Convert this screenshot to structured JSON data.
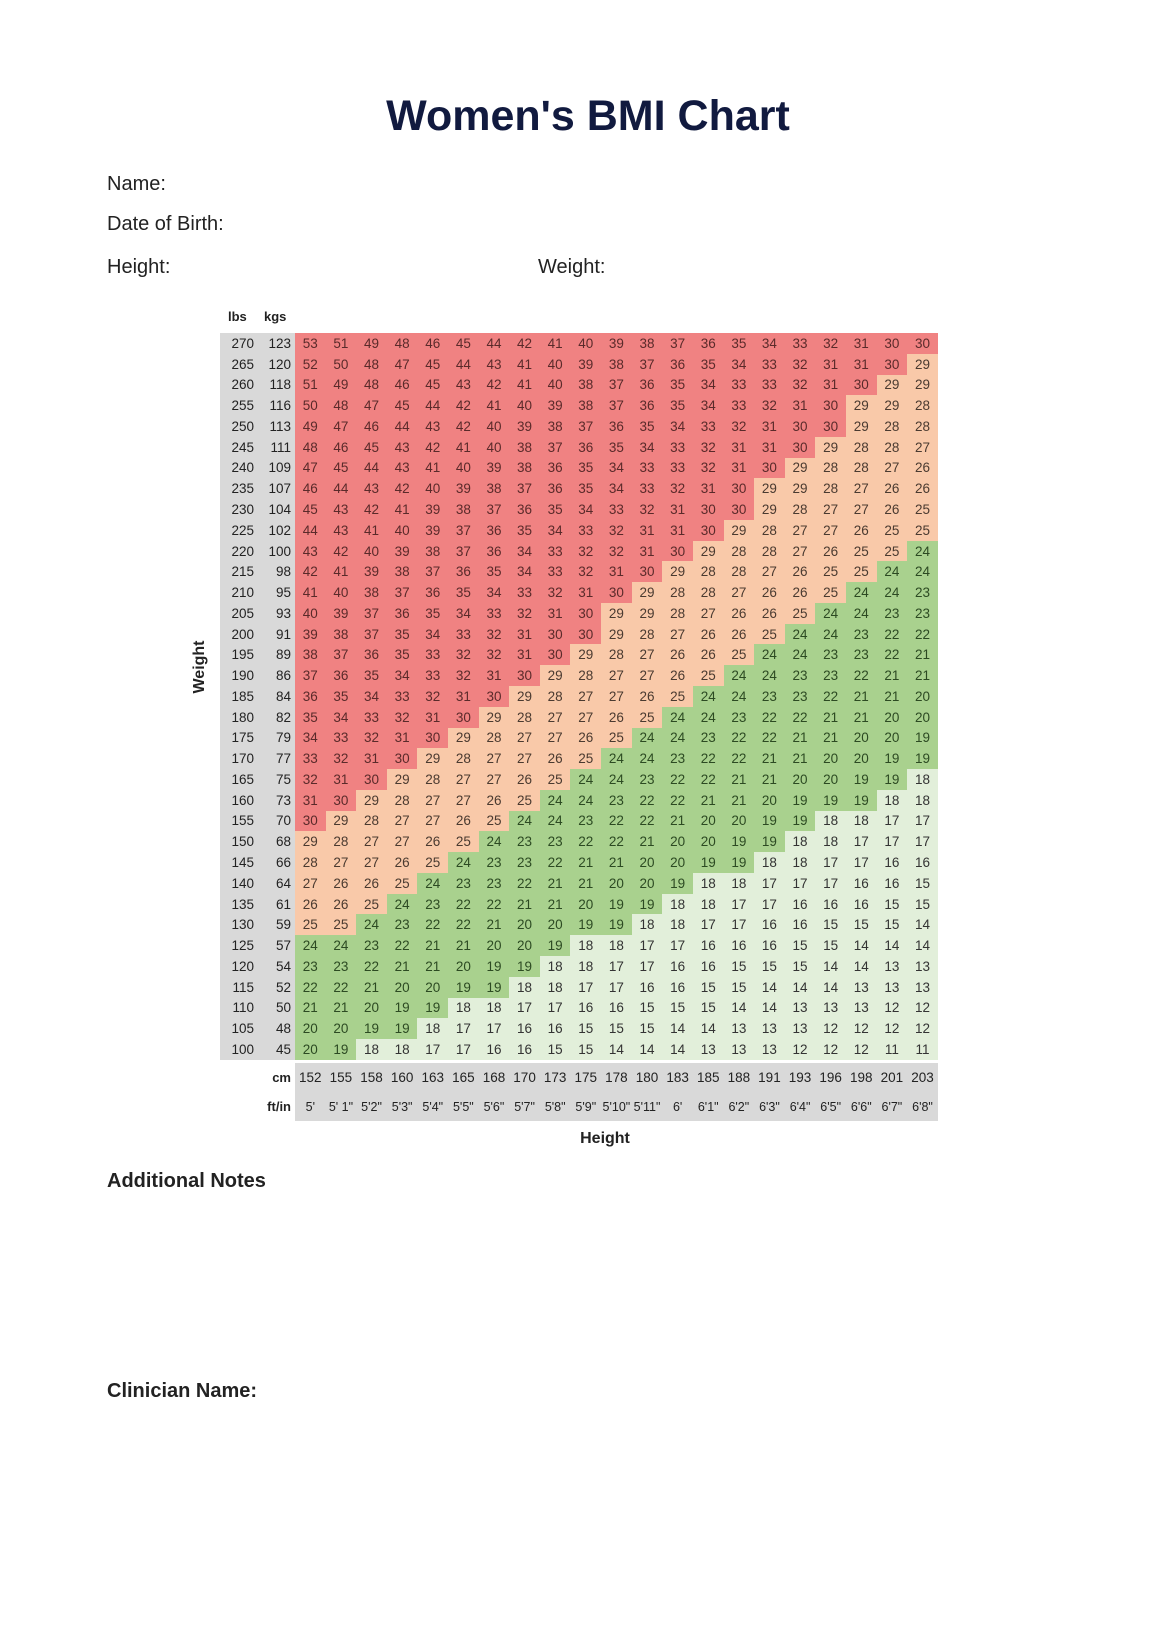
{
  "title": "Women's BMI Chart",
  "fields": {
    "name": "Name:",
    "dob": "Date of Birth:",
    "height": "Height:",
    "weight": "Weight:"
  },
  "table": {
    "lbs_header": "lbs",
    "kgs_header": "kgs",
    "cm_label": "cm",
    "ftin_label": "ft/in",
    "y_axis_label": "Weight",
    "x_axis_label": "Height",
    "colors": {
      "obese": "#f08282",
      "overweight": "#f9c9a9",
      "healthy": "#a9d18e",
      "underweight": "#e2efda",
      "header": "#d9d9d9"
    },
    "cm": [
      "152",
      "155",
      "158",
      "160",
      "163",
      "165",
      "168",
      "170",
      "173",
      "175",
      "178",
      "180",
      "183",
      "185",
      "188",
      "191",
      "193",
      "196",
      "198",
      "201",
      "203"
    ],
    "ftin": [
      "5'",
      "5' 1\"",
      "5'2\"",
      "5'3\"",
      "5'4\"",
      "5'5\"",
      "5'6\"",
      "5'7\"",
      "5'8\"",
      "5'9\"",
      "5'10\"",
      "5'11\"",
      "6'",
      "6'1\"",
      "6'2\"",
      "6'3\"",
      "6'4\"",
      "6'5\"",
      "6'6\"",
      "6'7\"",
      "6'8\""
    ],
    "rows": [
      {
        "lbs": "270",
        "kgs": "123",
        "bmi": [
          53,
          51,
          49,
          48,
          46,
          45,
          44,
          42,
          41,
          40,
          39,
          38,
          37,
          36,
          35,
          34,
          33,
          32,
          31,
          30,
          30
        ]
      },
      {
        "lbs": "265",
        "kgs": "120",
        "bmi": [
          52,
          50,
          48,
          47,
          45,
          44,
          43,
          41,
          40,
          39,
          38,
          37,
          36,
          35,
          34,
          33,
          32,
          31,
          31,
          30,
          29
        ]
      },
      {
        "lbs": "260",
        "kgs": "118",
        "bmi": [
          51,
          49,
          48,
          46,
          45,
          43,
          42,
          41,
          40,
          38,
          37,
          36,
          35,
          34,
          33,
          33,
          32,
          31,
          30,
          29,
          29
        ]
      },
      {
        "lbs": "255",
        "kgs": "116",
        "bmi": [
          50,
          48,
          47,
          45,
          44,
          42,
          41,
          40,
          39,
          38,
          37,
          36,
          35,
          34,
          33,
          32,
          31,
          30,
          29,
          29,
          28
        ]
      },
      {
        "lbs": "250",
        "kgs": "113",
        "bmi": [
          49,
          47,
          46,
          44,
          43,
          42,
          40,
          39,
          38,
          37,
          36,
          35,
          34,
          33,
          32,
          31,
          30,
          30,
          29,
          28,
          28
        ]
      },
      {
        "lbs": "245",
        "kgs": "111",
        "bmi": [
          48,
          46,
          45,
          43,
          42,
          41,
          40,
          38,
          37,
          36,
          35,
          34,
          33,
          32,
          31,
          31,
          30,
          29,
          28,
          28,
          27
        ]
      },
      {
        "lbs": "240",
        "kgs": "109",
        "bmi": [
          47,
          45,
          44,
          43,
          41,
          40,
          39,
          38,
          36,
          35,
          34,
          33,
          33,
          32,
          31,
          30,
          29,
          28,
          28,
          27,
          26
        ]
      },
      {
        "lbs": "235",
        "kgs": "107",
        "bmi": [
          46,
          44,
          43,
          42,
          40,
          39,
          38,
          37,
          36,
          35,
          34,
          33,
          32,
          31,
          30,
          29,
          29,
          28,
          27,
          26,
          26
        ]
      },
      {
        "lbs": "230",
        "kgs": "104",
        "bmi": [
          45,
          43,
          42,
          41,
          39,
          38,
          37,
          36,
          35,
          34,
          33,
          32,
          31,
          30,
          30,
          29,
          28,
          27,
          27,
          26,
          25
        ]
      },
      {
        "lbs": "225",
        "kgs": "102",
        "bmi": [
          44,
          43,
          41,
          40,
          39,
          37,
          36,
          35,
          34,
          33,
          32,
          31,
          31,
          30,
          29,
          28,
          27,
          27,
          26,
          25,
          25
        ]
      },
      {
        "lbs": "220",
        "kgs": "100",
        "bmi": [
          43,
          42,
          40,
          39,
          38,
          37,
          36,
          34,
          33,
          32,
          32,
          31,
          30,
          29,
          28,
          28,
          27,
          26,
          25,
          25,
          24
        ]
      },
      {
        "lbs": "215",
        "kgs": "98",
        "bmi": [
          42,
          41,
          39,
          38,
          37,
          36,
          35,
          34,
          33,
          32,
          31,
          30,
          29,
          28,
          28,
          27,
          26,
          25,
          25,
          24,
          24
        ]
      },
      {
        "lbs": "210",
        "kgs": "95",
        "bmi": [
          41,
          40,
          38,
          37,
          36,
          35,
          34,
          33,
          32,
          31,
          30,
          29,
          28,
          28,
          27,
          26,
          26,
          25,
          24,
          24,
          23
        ]
      },
      {
        "lbs": "205",
        "kgs": "93",
        "bmi": [
          40,
          39,
          37,
          36,
          35,
          34,
          33,
          32,
          31,
          30,
          29,
          29,
          28,
          27,
          26,
          26,
          25,
          24,
          24,
          23,
          23
        ]
      },
      {
        "lbs": "200",
        "kgs": "91",
        "bmi": [
          39,
          38,
          37,
          35,
          34,
          33,
          32,
          31,
          30,
          30,
          29,
          28,
          27,
          26,
          26,
          25,
          24,
          24,
          23,
          22,
          22
        ]
      },
      {
        "lbs": "195",
        "kgs": "89",
        "bmi": [
          38,
          37,
          36,
          35,
          33,
          32,
          32,
          31,
          30,
          29,
          28,
          27,
          26,
          26,
          25,
          24,
          24,
          23,
          23,
          22,
          21
        ]
      },
      {
        "lbs": "190",
        "kgs": "86",
        "bmi": [
          37,
          36,
          35,
          34,
          33,
          32,
          31,
          30,
          29,
          28,
          27,
          27,
          26,
          25,
          24,
          24,
          23,
          23,
          22,
          21,
          21
        ]
      },
      {
        "lbs": "185",
        "kgs": "84",
        "bmi": [
          36,
          35,
          34,
          33,
          32,
          31,
          30,
          29,
          28,
          27,
          27,
          26,
          25,
          24,
          24,
          23,
          23,
          22,
          21,
          21,
          20
        ]
      },
      {
        "lbs": "180",
        "kgs": "82",
        "bmi": [
          35,
          34,
          33,
          32,
          31,
          30,
          29,
          28,
          27,
          27,
          26,
          25,
          24,
          24,
          23,
          22,
          22,
          21,
          21,
          20,
          20
        ]
      },
      {
        "lbs": "175",
        "kgs": "79",
        "bmi": [
          34,
          33,
          32,
          31,
          30,
          29,
          28,
          27,
          27,
          26,
          25,
          24,
          24,
          23,
          22,
          22,
          21,
          21,
          20,
          20,
          19
        ]
      },
      {
        "lbs": "170",
        "kgs": "77",
        "bmi": [
          33,
          32,
          31,
          30,
          29,
          28,
          27,
          27,
          26,
          25,
          24,
          24,
          23,
          22,
          22,
          21,
          21,
          20,
          20,
          19,
          19
        ]
      },
      {
        "lbs": "165",
        "kgs": "75",
        "bmi": [
          32,
          31,
          30,
          29,
          28,
          27,
          27,
          26,
          25,
          24,
          24,
          23,
          22,
          22,
          21,
          21,
          20,
          20,
          19,
          19,
          18
        ]
      },
      {
        "lbs": "160",
        "kgs": "73",
        "bmi": [
          31,
          30,
          29,
          28,
          27,
          27,
          26,
          25,
          24,
          24,
          23,
          22,
          22,
          21,
          21,
          20,
          19,
          19,
          19,
          18,
          18
        ]
      },
      {
        "lbs": "155",
        "kgs": "70",
        "bmi": [
          30,
          29,
          28,
          27,
          27,
          26,
          25,
          24,
          24,
          23,
          22,
          22,
          21,
          20,
          20,
          19,
          19,
          18,
          18,
          17,
          17
        ]
      },
      {
        "lbs": "150",
        "kgs": "68",
        "bmi": [
          29,
          28,
          27,
          27,
          26,
          25,
          24,
          23,
          23,
          22,
          22,
          21,
          20,
          20,
          19,
          19,
          18,
          18,
          17,
          17,
          17
        ]
      },
      {
        "lbs": "145",
        "kgs": "66",
        "bmi": [
          28,
          27,
          27,
          26,
          25,
          24,
          23,
          23,
          22,
          21,
          21,
          20,
          20,
          19,
          19,
          18,
          18,
          17,
          17,
          16,
          16
        ]
      },
      {
        "lbs": "140",
        "kgs": "64",
        "bmi": [
          27,
          26,
          26,
          25,
          24,
          23,
          23,
          22,
          21,
          21,
          20,
          20,
          19,
          18,
          18,
          17,
          17,
          17,
          16,
          16,
          15
        ]
      },
      {
        "lbs": "135",
        "kgs": "61",
        "bmi": [
          26,
          26,
          25,
          24,
          23,
          22,
          22,
          21,
          21,
          20,
          19,
          19,
          18,
          18,
          17,
          17,
          16,
          16,
          16,
          15,
          15
        ]
      },
      {
        "lbs": "130",
        "kgs": "59",
        "bmi": [
          25,
          25,
          24,
          23,
          22,
          22,
          21,
          20,
          20,
          19,
          19,
          18,
          18,
          17,
          17,
          16,
          16,
          15,
          15,
          15,
          14
        ]
      },
      {
        "lbs": "125",
        "kgs": "57",
        "bmi": [
          24,
          24,
          23,
          22,
          21,
          21,
          20,
          20,
          19,
          18,
          18,
          17,
          17,
          16,
          16,
          16,
          15,
          15,
          14,
          14,
          14
        ]
      },
      {
        "lbs": "120",
        "kgs": "54",
        "bmi": [
          23,
          23,
          22,
          21,
          21,
          20,
          19,
          19,
          18,
          18,
          17,
          17,
          16,
          16,
          15,
          15,
          15,
          14,
          14,
          13,
          13
        ]
      },
      {
        "lbs": "115",
        "kgs": "52",
        "bmi": [
          22,
          22,
          21,
          20,
          20,
          19,
          19,
          18,
          18,
          17,
          17,
          16,
          16,
          15,
          15,
          14,
          14,
          14,
          13,
          13,
          13
        ]
      },
      {
        "lbs": "110",
        "kgs": "50",
        "bmi": [
          21,
          21,
          20,
          19,
          19,
          18,
          18,
          17,
          17,
          16,
          16,
          15,
          15,
          15,
          14,
          14,
          13,
          13,
          13,
          12,
          12
        ]
      },
      {
        "lbs": "105",
        "kgs": "48",
        "bmi": [
          20,
          20,
          19,
          19,
          18,
          17,
          17,
          16,
          16,
          15,
          15,
          15,
          14,
          14,
          13,
          13,
          13,
          12,
          12,
          12,
          12
        ]
      },
      {
        "lbs": "100",
        "kgs": "45",
        "bmi": [
          20,
          19,
          18,
          18,
          17,
          17,
          16,
          16,
          15,
          15,
          14,
          14,
          14,
          13,
          13,
          13,
          12,
          12,
          12,
          11,
          11
        ]
      }
    ]
  },
  "sections": {
    "notes": "Additional Notes",
    "clinician": "Clinician Name:"
  }
}
